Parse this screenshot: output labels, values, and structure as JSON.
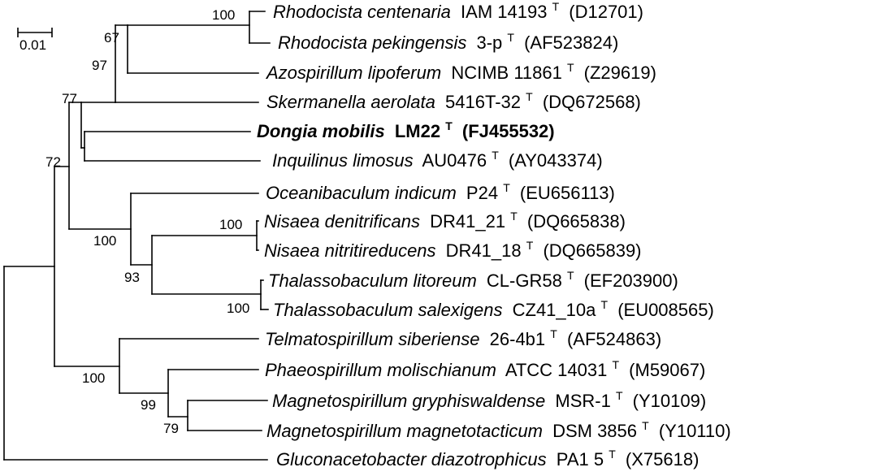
{
  "scale_bar": {
    "label": "0.01"
  },
  "taxa": [
    {
      "genus": "Rhodocista centenaria",
      "strain": "IAM 14193",
      "type_mark": "T",
      "accession": "(D12701)",
      "bold": false
    },
    {
      "genus": "Rhodocista pekingensis",
      "strain": "3-p",
      "type_mark": "T",
      "accession": "(AF523824)",
      "bold": false
    },
    {
      "genus": "Azospirillum lipoferum",
      "strain": "NCIMB 11861",
      "type_mark": "T",
      "accession": "(Z29619)",
      "bold": false
    },
    {
      "genus": "Skermanella aerolata",
      "strain": "5416T-32",
      "type_mark": "T",
      "accession": "(DQ672568)",
      "bold": false
    },
    {
      "genus": "Dongia mobilis",
      "strain": "LM22",
      "type_mark": "T",
      "accession": "(FJ455532)",
      "bold": true
    },
    {
      "genus": "Inquilinus limosus",
      "strain": "AU0476",
      "type_mark": "T",
      "accession": "(AY043374)",
      "bold": false
    },
    {
      "genus": "Oceanibaculum indicum",
      "strain": "P24",
      "type_mark": "T",
      "accession": "(EU656113)",
      "bold": false
    },
    {
      "genus": "Nisaea denitrificans",
      "strain": "DR41_21",
      "type_mark": "T",
      "accession": "(DQ665838)",
      "bold": false
    },
    {
      "genus": "Nisaea nitritireducens",
      "strain": "DR41_18",
      "type_mark": "T",
      "accession": "(DQ665839)",
      "bold": false
    },
    {
      "genus": "Thalassobaculum litoreum",
      "strain": "CL-GR58",
      "type_mark": "T",
      "accession": "(EF203900)",
      "bold": false
    },
    {
      "genus": "Thalassobaculum salexigens",
      "strain": "CZ41_10a",
      "type_mark": "T",
      "accession": "(EU008565)",
      "bold": false
    },
    {
      "genus": "Telmatospirillum siberiense",
      "strain": "26-4b1",
      "type_mark": "T",
      "accession": "(AF524863)",
      "bold": false
    },
    {
      "genus": "Phaeospirillum molischianum",
      "strain": "ATCC 14031",
      "type_mark": "T",
      "accession": "(M59067)",
      "bold": false
    },
    {
      "genus": "Magnetospirillum gryphiswaldense",
      "strain": "MSR-1",
      "type_mark": "T",
      "accession": "(Y10109)",
      "bold": false
    },
    {
      "genus": "Magnetospirillum magnetotacticum",
      "strain": "DSM 3856",
      "type_mark": "T",
      "accession": "(Y10110)",
      "bold": false
    },
    {
      "genus": "Gluconacetobacter diazotrophicus",
      "strain": "PA1 5",
      "type_mark": "T",
      "accession": "(X75618)",
      "bold": false
    }
  ],
  "bootstrap": {
    "rhodocista": "100",
    "rhodocista_azospirillum": "67",
    "skermanella_group": "97",
    "dongia_group": "77",
    "main_clade": "72",
    "oceanibaculum_group": "100",
    "nisaea_thalassobaculum": "93",
    "nisaea": "100",
    "thalassobaculum": "100",
    "telmatospirillum_group": "100",
    "phaeospirillum_group": "99",
    "magnetospirillum": "79"
  }
}
